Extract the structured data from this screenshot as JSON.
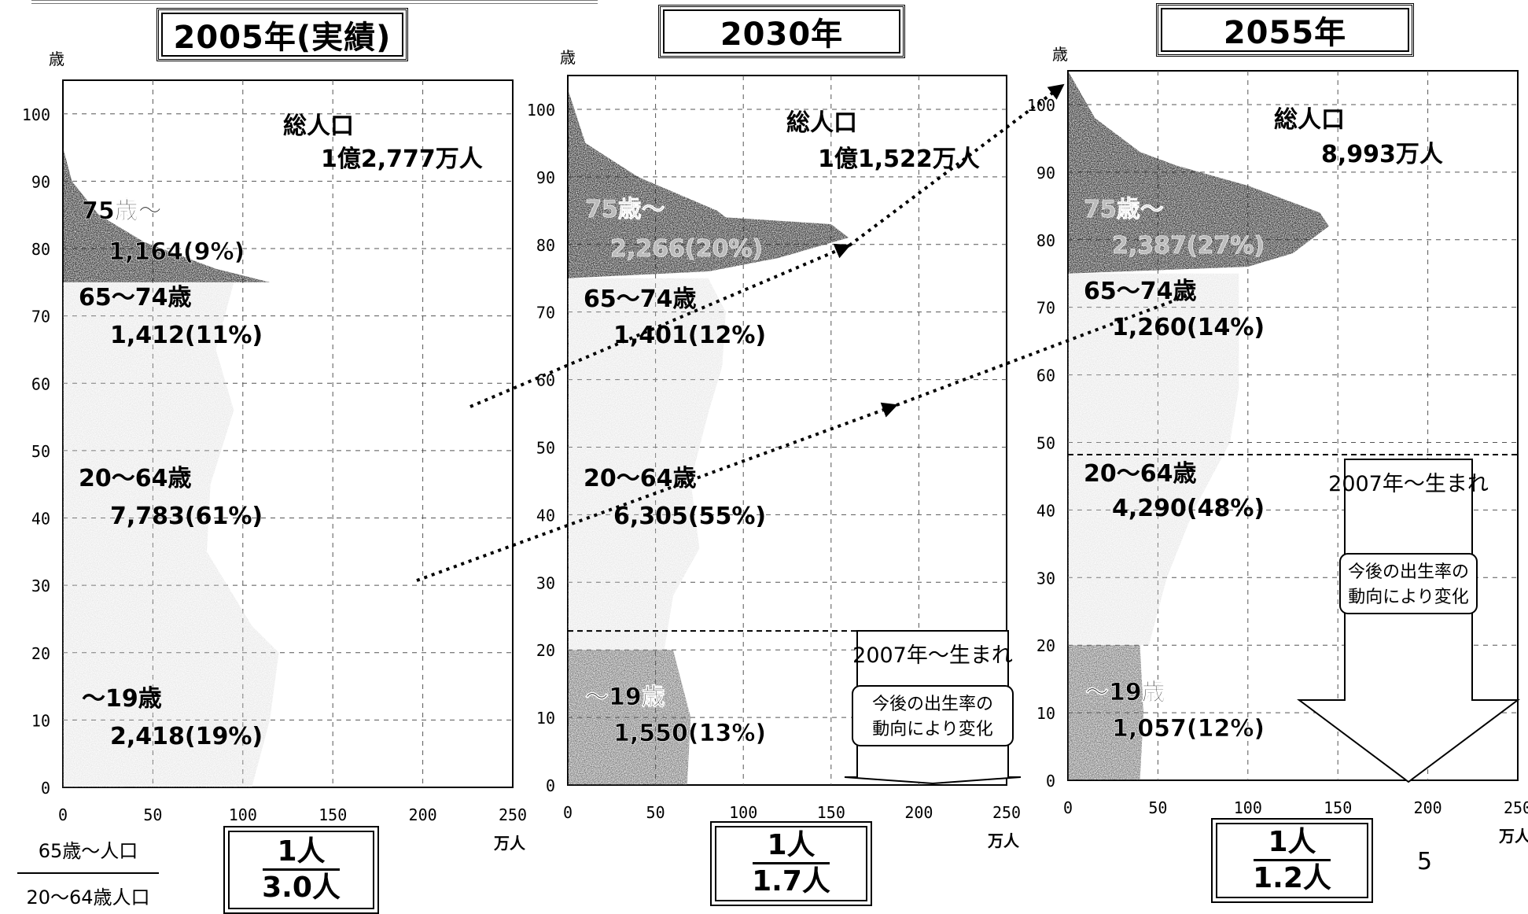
{
  "chart_data": [
    {
      "type": "area",
      "title": "2005年(実績)",
      "ylabel": "歳",
      "xlabel": "万人",
      "xlim": [
        0,
        250
      ],
      "ylim": [
        0,
        105
      ],
      "x_ticks": [
        "0",
        "50",
        "100",
        "150",
        "200",
        "250"
      ],
      "y_ticks": [
        "0",
        "10",
        "20",
        "30",
        "40",
        "50",
        "60",
        "70",
        "80",
        "90",
        "100"
      ],
      "total_label": "総人口",
      "total_value": "1億2,777万人",
      "groups": [
        {
          "name": "75歳～",
          "value": "1,164(9%)"
        },
        {
          "name": "65～74歳",
          "value": "1,412(11%)"
        },
        {
          "name": "20～64歳",
          "value": "7,783(61%)"
        },
        {
          "name": "～19歳",
          "value": "2,418(19%)"
        }
      ],
      "ratio_numerator": "1人",
      "ratio_denominator": "3.0人"
    },
    {
      "type": "area",
      "title": "2030年",
      "ylabel": "歳",
      "xlabel": "万人",
      "xlim": [
        0,
        250
      ],
      "ylim": [
        0,
        105
      ],
      "x_ticks": [
        "0",
        "50",
        "100",
        "150",
        "200",
        "250"
      ],
      "y_ticks": [
        "0",
        "10",
        "20",
        "30",
        "40",
        "50",
        "60",
        "70",
        "80",
        "90",
        "100"
      ],
      "total_label": "総人口",
      "total_value": "1億1,522万人",
      "groups": [
        {
          "name": "75歳～",
          "value": "2,266(20%)"
        },
        {
          "name": "65～74歳",
          "value": "1,401(12%)"
        },
        {
          "name": "20～64歳",
          "value": "6,305(55%)"
        },
        {
          "name": "～19歳",
          "value": "1,550(13%)"
        }
      ],
      "annotation_title": "2007年～生まれ",
      "annotation_note": "今後の出生率の動向により変化",
      "ratio_numerator": "1人",
      "ratio_denominator": "1.7人"
    },
    {
      "type": "area",
      "title": "2055年",
      "ylabel": "歳",
      "xlabel": "万人",
      "xlim": [
        0,
        250
      ],
      "ylim": [
        0,
        105
      ],
      "x_ticks": [
        "0",
        "50",
        "100",
        "150",
        "200",
        "250"
      ],
      "y_ticks": [
        "0",
        "10",
        "20",
        "30",
        "40",
        "50",
        "60",
        "70",
        "80",
        "90",
        "100"
      ],
      "total_label": "総人口",
      "total_value": "8,993万人",
      "groups": [
        {
          "name": "75歳～",
          "value": "2,387(27%)"
        },
        {
          "name": "65～74歳",
          "value": "1,260(14%)"
        },
        {
          "name": "20～64歳",
          "value": "4,290(48%)"
        },
        {
          "name": "～19歳",
          "value": "1,057(12%)"
        }
      ],
      "annotation_title": "2007年～生まれ",
      "annotation_note": "今後の出生率の動向により変化",
      "ratio_numerator": "1人",
      "ratio_denominator": "1.2人"
    }
  ],
  "legend": {
    "numerator": "65歳～人口",
    "denominator": "20～64歳人口"
  },
  "page_number": "5"
}
